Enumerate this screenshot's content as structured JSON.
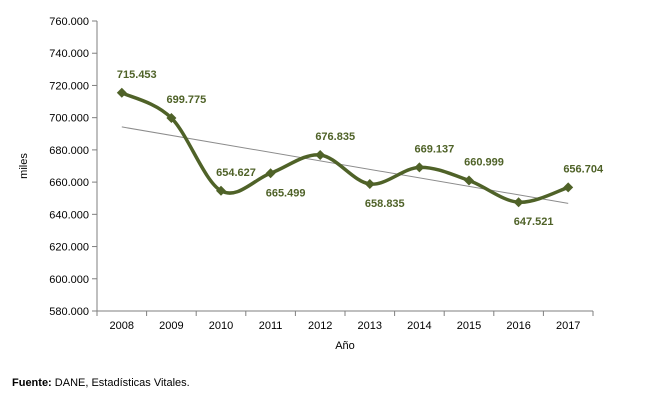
{
  "chart_data": {
    "type": "line",
    "categories": [
      "2008",
      "2009",
      "2010",
      "2011",
      "2012",
      "2013",
      "2014",
      "2015",
      "2016",
      "2017"
    ],
    "values": [
      715453,
      699775,
      654627,
      665499,
      676835,
      658835,
      669137,
      660999,
      647521,
      656704
    ],
    "data_labels": [
      "715.453",
      "699.775",
      "654.627",
      "665.499",
      "676.835",
      "658.835",
      "669.137",
      "660.999",
      "647.521",
      "656.704"
    ],
    "y_ticks": [
      580000,
      600000,
      620000,
      640000,
      660000,
      680000,
      700000,
      720000,
      740000,
      760000
    ],
    "y_tick_labels": [
      "580.000",
      "600.000",
      "620.000",
      "640.000",
      "660.000",
      "680.000",
      "700.000",
      "720.000",
      "740.000",
      "760.000"
    ],
    "ylim": [
      580000,
      760000
    ],
    "xlabel": "Año",
    "ylabel": "miles",
    "trendline": true,
    "grid": false,
    "colors": {
      "series": "#4f6228",
      "trend": "#8c8c8c",
      "axis": "#7f7f7f"
    }
  },
  "source": {
    "label": "Fuente:",
    "text": " DANE, Estadísticas Vitales."
  }
}
